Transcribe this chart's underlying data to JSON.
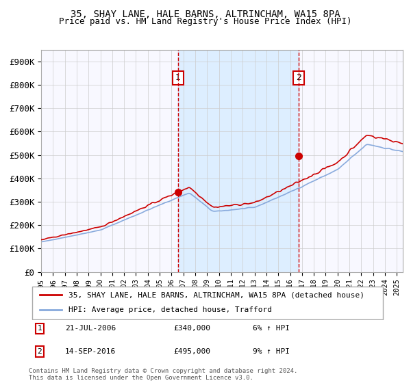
{
  "title1": "35, SHAY LANE, HALE BARNS, ALTRINCHAM, WA15 8PA",
  "title2": "Price paid vs. HM Land Registry's House Price Index (HPI)",
  "ylabel": "",
  "xlim_start": 1995.0,
  "xlim_end": 2025.5,
  "ylim": [
    0,
    950000
  ],
  "yticks": [
    0,
    100000,
    200000,
    300000,
    400000,
    500000,
    600000,
    700000,
    800000,
    900000
  ],
  "ytick_labels": [
    "£0",
    "£100K",
    "£200K",
    "£300K",
    "£400K",
    "£500K",
    "£600K",
    "£700K",
    "£800K",
    "£900K"
  ],
  "xticks": [
    1995,
    1996,
    1997,
    1998,
    1999,
    2000,
    2001,
    2002,
    2003,
    2004,
    2005,
    2006,
    2007,
    2008,
    2009,
    2010,
    2011,
    2012,
    2013,
    2014,
    2015,
    2016,
    2017,
    2018,
    2019,
    2020,
    2021,
    2022,
    2023,
    2024,
    2025
  ],
  "sale1_date": 2006.55,
  "sale1_price": 340000,
  "sale1_label": "1",
  "sale1_text": "21-JUL-2006    £340,000    6% ↑ HPI",
  "sale2_date": 2016.71,
  "sale2_price": 495000,
  "sale2_label": "2",
  "sale2_text": "14-SEP-2016    £495,000    9% ↑ HPI",
  "shaded_start": 2006.55,
  "shaded_end": 2016.71,
  "shaded_color": "#ddeeff",
  "line_color_property": "#cc0000",
  "line_color_hpi": "#88aadd",
  "dot_color": "#cc0000",
  "dashed_line_color": "#cc0000",
  "legend_property_label": "35, SHAY LANE, HALE BARNS, ALTRINCHAM, WA15 8PA (detached house)",
  "legend_hpi_label": "HPI: Average price, detached house, Trafford",
  "footnote": "Contains HM Land Registry data © Crown copyright and database right 2024.\nThis data is licensed under the Open Government Licence v3.0.",
  "background_color": "#ffffff",
  "plot_bg_color": "#f8f8ff"
}
